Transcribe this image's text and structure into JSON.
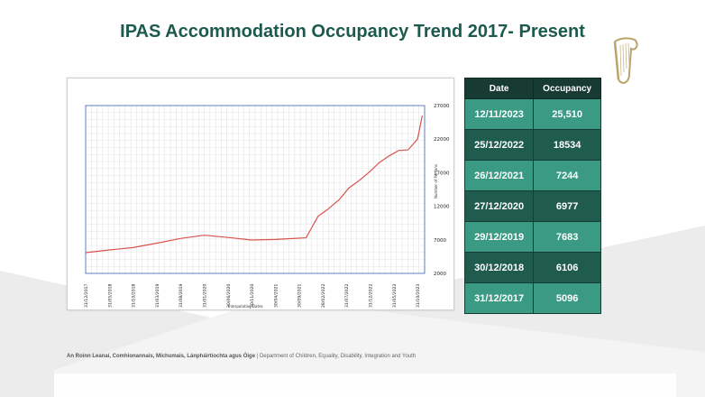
{
  "slide": {
    "title": "IPAS Accommodation Occupancy Trend 2017- Present",
    "footer_bold": "An Roinn Leanaí, Comhionannais, Míchumais, Lánpháirtíochta agus Óige",
    "footer_normal": "Department of Children, Equality, Disability, Integration and Youth",
    "footer_sep": "|",
    "colors": {
      "title": "#1d5a4e",
      "table_header": "#173a33",
      "table_cell": "#3a9a84",
      "line": "#d9534f"
    }
  },
  "table": {
    "headers": [
      "Date",
      "Occupancy"
    ],
    "rows": [
      {
        "date": "12/11/2023",
        "occupancy": "25,510"
      },
      {
        "date": "25/12/2022",
        "occupancy": "18534"
      },
      {
        "date": "26/12/2021",
        "occupancy": "7244"
      },
      {
        "date": "27/12/2020",
        "occupancy": "6977"
      },
      {
        "date": "29/12/2019",
        "occupancy": "7683"
      },
      {
        "date": "30/12/2018",
        "occupancy": "6106"
      },
      {
        "date": "31/12/2017",
        "occupancy": "5096"
      }
    ]
  },
  "chart_data": {
    "type": "line",
    "xlabel": "Interpolating Dates",
    "ylabel": "Number of Persons",
    "ylim": [
      2000,
      27000
    ],
    "yticks": [
      27000,
      22000,
      17000,
      12000,
      7000,
      2000
    ],
    "grid": true,
    "x_tick_labels": [
      "31/12/2017",
      "31/05/2018",
      "31/10/2018",
      "31/03/2019",
      "31/08/2019",
      "31/01/2020",
      "30/06/2020",
      "30/11/2020",
      "30/04/2021",
      "30/09/2021",
      "28/02/2022",
      "31/07/2022",
      "31/12/2022",
      "31/05/2023",
      "31/10/2023"
    ],
    "series": [
      {
        "x": [
          0,
          1,
          2,
          3,
          4,
          5,
          6,
          7,
          8,
          9,
          9.3,
          9.8,
          10.2,
          10.7,
          11.1,
          11.6,
          12,
          12.4,
          12.8,
          13.2,
          13.6,
          14,
          14.2
        ],
        "values": [
          5096,
          5500,
          5850,
          6500,
          7200,
          7683,
          7350,
          6977,
          7050,
          7244,
          7300,
          10500,
          11500,
          13000,
          14700,
          16000,
          17200,
          18534,
          19500,
          20300,
          20400,
          22000,
          25510
        ]
      }
    ]
  }
}
